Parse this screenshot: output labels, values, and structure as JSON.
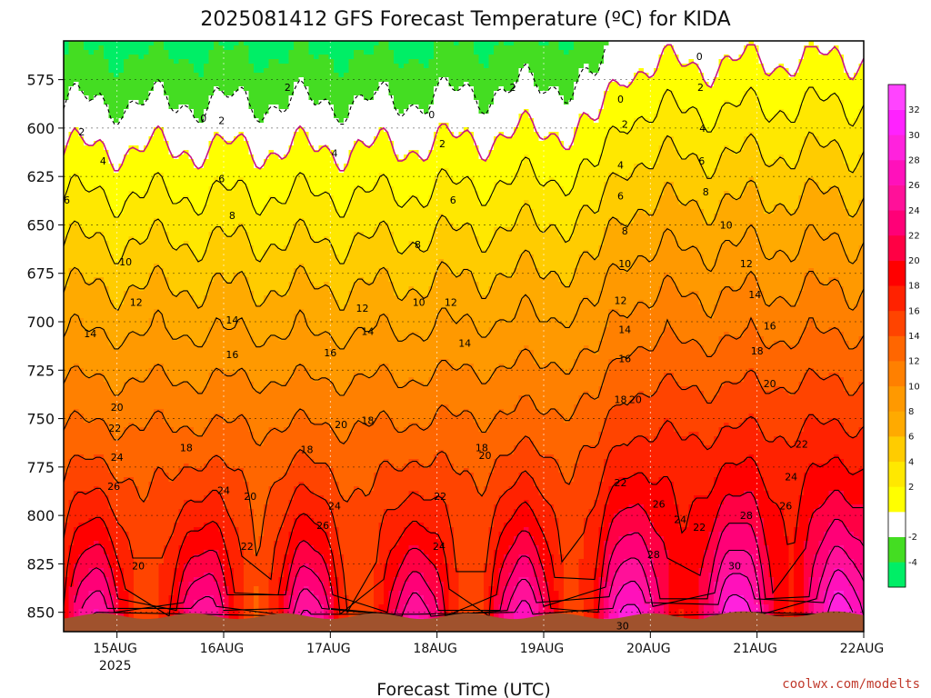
{
  "chart_data": {
    "type": "heatmap",
    "title": "2025081412 GFS Forecast Temperature (ºC) for KIDA",
    "xlabel": "Forecast Time (UTC)",
    "ylabel": "",
    "credit": "coolwx.com/modelts",
    "x_axis": {
      "unit": "day",
      "range": [
        14.5,
        22.0
      ],
      "ticks": [
        {
          "value": 15,
          "label": "15AUG",
          "sublabel": "2025"
        },
        {
          "value": 16,
          "label": "16AUG",
          "sublabel": ""
        },
        {
          "value": 17,
          "label": "17AUG",
          "sublabel": ""
        },
        {
          "value": 18,
          "label": "18AUG",
          "sublabel": ""
        },
        {
          "value": 19,
          "label": "19AUG",
          "sublabel": ""
        },
        {
          "value": 20,
          "label": "20AUG",
          "sublabel": ""
        },
        {
          "value": 21,
          "label": "21AUG",
          "sublabel": ""
        },
        {
          "value": 22,
          "label": "22AUG",
          "sublabel": ""
        }
      ]
    },
    "y_axis": {
      "unit": "hPa",
      "range": [
        555,
        860
      ],
      "inverted": true,
      "ticks": [
        575,
        600,
        625,
        650,
        675,
        700,
        725,
        750,
        775,
        800,
        825,
        850
      ]
    },
    "grid": true,
    "colorbar": {
      "placement": "right",
      "levels": [
        -6,
        -4,
        -2,
        0,
        2,
        4,
        6,
        8,
        10,
        12,
        14,
        16,
        18,
        20,
        22,
        24,
        26,
        28,
        30,
        32,
        34
      ],
      "labels": [
        -4,
        -2,
        2,
        4,
        6,
        8,
        10,
        12,
        14,
        16,
        18,
        20,
        22,
        24,
        26,
        28,
        30,
        32
      ],
      "colors": [
        "#00ee66",
        "#44dd22",
        "#ffffff",
        "#ffff00",
        "#ffe800",
        "#ffcc00",
        "#ffaa00",
        "#ff9900",
        "#ff8000",
        "#ff6600",
        "#ff4400",
        "#ff2200",
        "#ff0000",
        "#ff0044",
        "#ff0077",
        "#ff1199",
        "#ff11bb",
        "#ff22dd",
        "#ff22ff",
        "#ff44ff"
      ]
    },
    "terrain_color": "#a0522d",
    "freezing_line_color": "#c71585",
    "model": {
      "surface_pressure": 852,
      "surface_temp_base": 20.3,
      "diurnal_amplitude": 6.0,
      "lapse_per_25hPa": 2.1,
      "daily_trend": [
        {
          "day": 14.5,
          "offset": 0.0
        },
        {
          "day": 17.5,
          "offset": 0.0
        },
        {
          "day": 19.5,
          "offset": 1.0
        },
        {
          "day": 19.75,
          "offset": 3.5
        },
        {
          "day": 22.0,
          "offset": 4.0
        }
      ]
    },
    "contour_labels": [
      {
        "x": 15.0,
        "p": 744,
        "t": 20
      },
      {
        "x": 14.98,
        "p": 755,
        "t": 22
      },
      {
        "x": 15.0,
        "p": 770,
        "t": 24
      },
      {
        "x": 14.97,
        "p": 785,
        "t": 26
      },
      {
        "x": 15.2,
        "p": 826,
        "t": 20
      },
      {
        "x": 14.75,
        "p": 706,
        "t": 14
      },
      {
        "x": 15.18,
        "p": 690,
        "t": 12
      },
      {
        "x": 15.08,
        "p": 669,
        "t": 10
      },
      {
        "x": 14.53,
        "p": 637,
        "t": 6
      },
      {
        "x": 14.67,
        "p": 602,
        "t": 2
      },
      {
        "x": 14.87,
        "p": 617,
        "t": 4
      },
      {
        "x": 15.81,
        "p": 595,
        "t": 0
      },
      {
        "x": 15.98,
        "p": 596,
        "t": 2
      },
      {
        "x": 15.98,
        "p": 626,
        "t": 6
      },
      {
        "x": 16.08,
        "p": 645,
        "t": 8
      },
      {
        "x": 16.08,
        "p": 699,
        "t": 14
      },
      {
        "x": 16.08,
        "p": 717,
        "t": 16
      },
      {
        "x": 15.65,
        "p": 765,
        "t": 18
      },
      {
        "x": 16.0,
        "p": 787,
        "t": 24
      },
      {
        "x": 16.25,
        "p": 790,
        "t": 20
      },
      {
        "x": 16.22,
        "p": 816,
        "t": 22
      },
      {
        "x": 16.78,
        "p": 766,
        "t": 18
      },
      {
        "x": 16.6,
        "p": 579,
        "t": 2
      },
      {
        "x": 17.04,
        "p": 613,
        "t": 4
      },
      {
        "x": 17.3,
        "p": 693,
        "t": 12
      },
      {
        "x": 17.35,
        "p": 705,
        "t": 14
      },
      {
        "x": 17.0,
        "p": 716,
        "t": 16
      },
      {
        "x": 17.1,
        "p": 753,
        "t": 20
      },
      {
        "x": 17.35,
        "p": 751,
        "t": 18
      },
      {
        "x": 17.04,
        "p": 795,
        "t": 24
      },
      {
        "x": 16.93,
        "p": 805,
        "t": 26
      },
      {
        "x": 18.15,
        "p": 637,
        "t": 6
      },
      {
        "x": 17.82,
        "p": 660,
        "t": 8
      },
      {
        "x": 17.83,
        "p": 690,
        "t": 10
      },
      {
        "x": 18.13,
        "p": 690,
        "t": 12
      },
      {
        "x": 18.26,
        "p": 711,
        "t": 14
      },
      {
        "x": 18.45,
        "p": 769,
        "t": 20
      },
      {
        "x": 18.42,
        "p": 765,
        "t": 18
      },
      {
        "x": 18.03,
        "p": 790,
        "t": 22
      },
      {
        "x": 18.02,
        "p": 816,
        "t": 24
      },
      {
        "x": 17.95,
        "p": 593,
        "t": 0
      },
      {
        "x": 18.05,
        "p": 608,
        "t": 2
      },
      {
        "x": 18.71,
        "p": 579,
        "t": 2
      },
      {
        "x": 19.72,
        "p": 585,
        "t": 0
      },
      {
        "x": 19.76,
        "p": 598,
        "t": 2
      },
      {
        "x": 19.72,
        "p": 619,
        "t": 4
      },
      {
        "x": 19.72,
        "p": 635,
        "t": 6
      },
      {
        "x": 19.76,
        "p": 653,
        "t": 8
      },
      {
        "x": 19.76,
        "p": 670,
        "t": 10
      },
      {
        "x": 19.72,
        "p": 689,
        "t": 12
      },
      {
        "x": 19.76,
        "p": 704,
        "t": 14
      },
      {
        "x": 19.76,
        "p": 719,
        "t": 16
      },
      {
        "x": 19.72,
        "p": 740,
        "t": 18
      },
      {
        "x": 19.86,
        "p": 740,
        "t": 20
      },
      {
        "x": 19.72,
        "p": 783,
        "t": 22
      },
      {
        "x": 20.08,
        "p": 794,
        "t": 26
      },
      {
        "x": 20.28,
        "p": 802,
        "t": 24
      },
      {
        "x": 20.46,
        "p": 806,
        "t": 22
      },
      {
        "x": 20.03,
        "p": 820,
        "t": 28
      },
      {
        "x": 20.46,
        "p": 563,
        "t": 0
      },
      {
        "x": 20.47,
        "p": 579,
        "t": 2
      },
      {
        "x": 20.49,
        "p": 600,
        "t": 4
      },
      {
        "x": 20.48,
        "p": 617,
        "t": 6
      },
      {
        "x": 20.52,
        "p": 633,
        "t": 8
      },
      {
        "x": 20.71,
        "p": 650,
        "t": 10
      },
      {
        "x": 20.9,
        "p": 670,
        "t": 12
      },
      {
        "x": 20.98,
        "p": 686,
        "t": 14
      },
      {
        "x": 21.12,
        "p": 702,
        "t": 16
      },
      {
        "x": 21.0,
        "p": 715,
        "t": 18
      },
      {
        "x": 21.12,
        "p": 732,
        "t": 20
      },
      {
        "x": 21.42,
        "p": 763,
        "t": 22
      },
      {
        "x": 21.32,
        "p": 780,
        "t": 24
      },
      {
        "x": 21.27,
        "p": 795,
        "t": 26
      },
      {
        "x": 20.9,
        "p": 800,
        "t": 28
      },
      {
        "x": 20.79,
        "p": 826,
        "t": 30
      },
      {
        "x": 19.74,
        "p": 857,
        "t": 30
      }
    ]
  }
}
